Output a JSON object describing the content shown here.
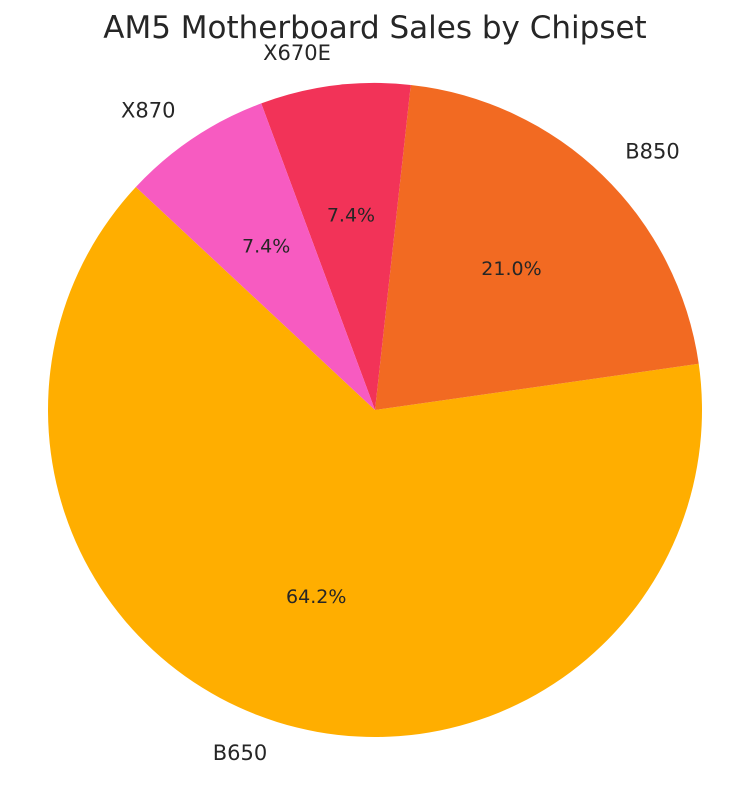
{
  "chart_data": {
    "type": "pie",
    "title": "AM5 Motherboard Sales by Chipset",
    "slices": [
      {
        "label": "B650",
        "value": 64.2,
        "pct_label": "64.2%",
        "color": "#FFAE00"
      },
      {
        "label": "B850",
        "value": 21.0,
        "pct_label": "21.0%",
        "color": "#F26A22"
      },
      {
        "label": "X670E",
        "value": 7.4,
        "pct_label": "7.4%",
        "color": "#F23358"
      },
      {
        "label": "X870",
        "value": 7.4,
        "pct_label": "7.4%",
        "color": "#F75BC1"
      }
    ]
  }
}
